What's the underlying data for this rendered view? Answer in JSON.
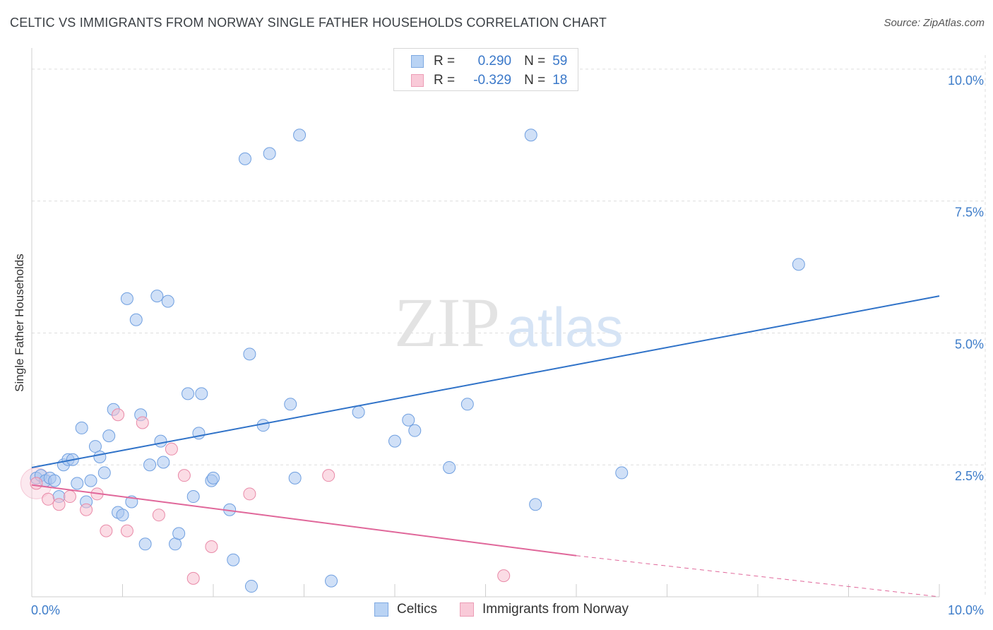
{
  "header": {
    "title": "CELTIC VS IMMIGRANTS FROM NORWAY SINGLE FATHER HOUSEHOLDS CORRELATION CHART",
    "source": "Source: ZipAtlas.com"
  },
  "watermark": {
    "zip": "ZIP",
    "atlas": "atlas"
  },
  "legend": {
    "series": [
      {
        "r_label": "R =",
        "r_value": "0.290",
        "n_label": "N =",
        "n_value": "59"
      },
      {
        "r_label": "R =",
        "r_value": "-0.329",
        "n_label": "N =",
        "n_value": "18"
      }
    ]
  },
  "bottom_legend": {
    "items": [
      "Celtics",
      "Immigrants from Norway"
    ]
  },
  "colors": {
    "blue_fill": "#a9c7f0",
    "blue_stroke": "#6f9fe0",
    "blue_line": "#2f72c8",
    "pink_fill": "#f7bfd0",
    "pink_stroke": "#e98aa8",
    "pink_line": "#e0679a",
    "tick_text": "#3d7cc9",
    "grid": "#dddddd"
  },
  "chart_data": {
    "type": "scatter",
    "title": "CELTIC VS IMMIGRANTS FROM NORWAY SINGLE FATHER HOUSEHOLDS CORRELATION CHART",
    "xlabel": "",
    "ylabel": "Single Father Households",
    "xlim": [
      0,
      10
    ],
    "ylim": [
      0,
      10.4
    ],
    "x_tick_labels": [
      "0.0%",
      "10.0%"
    ],
    "y_ticks": [
      2.5,
      5.0,
      7.5,
      10.0
    ],
    "y_tick_labels": [
      "2.5%",
      "5.0%",
      "7.5%",
      "10.0%"
    ],
    "grid": true,
    "legend_position": "top-center",
    "series": [
      {
        "name": "Celtics",
        "color": "#a9c7f0",
        "points": [
          [
            0.05,
            2.25
          ],
          [
            0.1,
            2.3
          ],
          [
            0.15,
            2.2
          ],
          [
            0.2,
            2.25
          ],
          [
            0.25,
            2.2
          ],
          [
            0.3,
            1.9
          ],
          [
            0.35,
            2.5
          ],
          [
            0.4,
            2.6
          ],
          [
            0.45,
            2.6
          ],
          [
            0.5,
            2.15
          ],
          [
            0.55,
            3.2
          ],
          [
            0.6,
            1.8
          ],
          [
            0.65,
            2.2
          ],
          [
            0.7,
            2.85
          ],
          [
            0.75,
            2.65
          ],
          [
            0.8,
            2.35
          ],
          [
            0.85,
            3.05
          ],
          [
            0.9,
            3.55
          ],
          [
            0.95,
            1.6
          ],
          [
            1.0,
            1.55
          ],
          [
            1.05,
            5.65
          ],
          [
            1.1,
            1.8
          ],
          [
            1.15,
            5.25
          ],
          [
            1.2,
            3.45
          ],
          [
            1.25,
            1.0
          ],
          [
            1.3,
            2.5
          ],
          [
            1.38,
            5.7
          ],
          [
            1.42,
            2.95
          ],
          [
            1.45,
            2.55
          ],
          [
            1.5,
            5.6
          ],
          [
            1.58,
            1.0
          ],
          [
            1.62,
            1.2
          ],
          [
            1.72,
            3.85
          ],
          [
            1.78,
            1.9
          ],
          [
            1.84,
            3.1
          ],
          [
            1.87,
            3.85
          ],
          [
            1.98,
            2.2
          ],
          [
            2.0,
            2.25
          ],
          [
            2.18,
            1.65
          ],
          [
            2.22,
            0.7
          ],
          [
            2.35,
            8.3
          ],
          [
            2.4,
            4.6
          ],
          [
            2.42,
            0.2
          ],
          [
            2.55,
            3.25
          ],
          [
            2.62,
            8.4
          ],
          [
            2.85,
            3.65
          ],
          [
            2.9,
            2.25
          ],
          [
            2.95,
            8.75
          ],
          [
            3.3,
            0.3
          ],
          [
            3.6,
            3.5
          ],
          [
            4.0,
            2.95
          ],
          [
            4.15,
            3.35
          ],
          [
            4.22,
            3.15
          ],
          [
            4.6,
            2.45
          ],
          [
            4.8,
            3.65
          ],
          [
            5.5,
            8.75
          ],
          [
            5.55,
            1.75
          ],
          [
            6.5,
            2.35
          ],
          [
            8.45,
            6.3
          ]
        ],
        "trend": {
          "x": [
            0,
            10
          ],
          "y": [
            2.45,
            5.7
          ]
        }
      },
      {
        "name": "Immigrants from Norway",
        "color": "#f7bfd0",
        "points": [
          [
            0.05,
            2.15
          ],
          [
            0.18,
            1.85
          ],
          [
            0.3,
            1.75
          ],
          [
            0.42,
            1.9
          ],
          [
            0.6,
            1.65
          ],
          [
            0.72,
            1.95
          ],
          [
            0.82,
            1.25
          ],
          [
            0.95,
            3.45
          ],
          [
            1.05,
            1.25
          ],
          [
            1.22,
            3.3
          ],
          [
            1.4,
            1.55
          ],
          [
            1.54,
            2.8
          ],
          [
            1.68,
            2.3
          ],
          [
            1.78,
            0.35
          ],
          [
            1.98,
            0.95
          ],
          [
            2.4,
            1.95
          ],
          [
            3.27,
            2.3
          ],
          [
            5.2,
            0.4
          ]
        ],
        "trend": {
          "x": [
            0,
            6.0
          ],
          "y": [
            2.12,
            0.78
          ]
        },
        "trend_dashed": {
          "x": [
            6.0,
            10
          ],
          "y": [
            0.78,
            0.0
          ]
        }
      }
    ]
  }
}
